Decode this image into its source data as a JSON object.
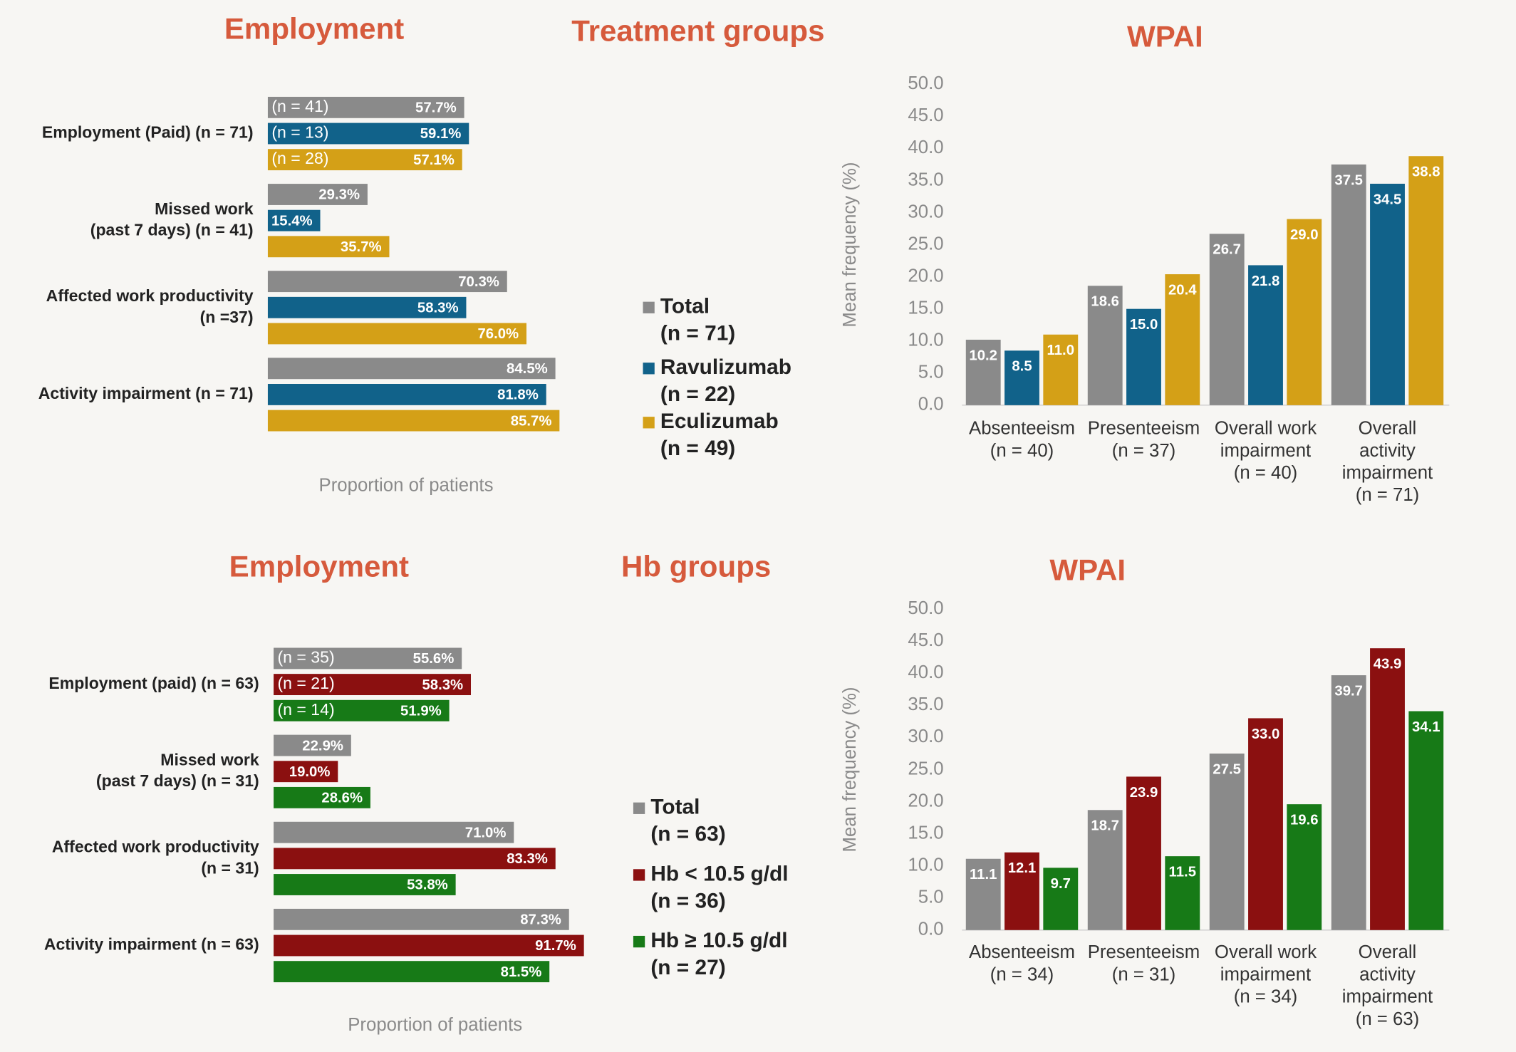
{
  "chart_data": [
    {
      "type": "hbar",
      "title": "Employment",
      "section_title": "Treatment groups",
      "xlabel": "Proportion of patients",
      "xlim": [
        0,
        100
      ],
      "categories": [
        [
          "Employment (Paid) (n = 71)"
        ],
        [
          "Missed work",
          "(past 7 days)  (n = 41)"
        ],
        [
          "Affected work productivity",
          "(n =37)"
        ],
        [
          "Activity impairment (n = 71)"
        ]
      ],
      "series": [
        {
          "name": "Total",
          "n_label": "(n = 71)",
          "color": "#8a8a8a",
          "inner_label": "(n = 41)",
          "values": [
            57.7,
            29.3,
            70.3,
            84.5
          ],
          "value_labels": [
            "57.7%",
            "29.3%",
            "70.3%",
            "84.5%"
          ]
        },
        {
          "name": "Ravulizumab",
          "n_label": "(n = 22)",
          "color": "#11628a",
          "inner_label": "(n = 13)",
          "values": [
            59.1,
            15.4,
            58.3,
            81.8
          ],
          "value_labels": [
            "59.1%",
            "15.4%",
            "58.3%",
            "81.8%"
          ]
        },
        {
          "name": "Eculizumab",
          "n_label": "(n = 49)",
          "color": "#d4a017",
          "inner_label": "(n = 28)",
          "values": [
            57.1,
            35.7,
            76.0,
            85.7
          ],
          "value_labels": [
            "57.1%",
            "35.7%",
            "76.0%",
            "85.7%"
          ]
        }
      ]
    },
    {
      "type": "bar",
      "title": "WPAI",
      "ylabel": "Mean frequency (%)",
      "ylim": [
        0,
        50
      ],
      "yticks": [
        {
          "value": 0,
          "label": "0.0"
        },
        {
          "value": 5,
          "label": "5.0"
        },
        {
          "value": 10,
          "label": "10.0"
        },
        {
          "value": 15,
          "label": "15.0"
        },
        {
          "value": 20,
          "label": "20.0"
        },
        {
          "value": 25,
          "label": "25.0"
        },
        {
          "value": 30,
          "label": "30.0"
        },
        {
          "value": 35,
          "label": "35.0"
        },
        {
          "value": 40,
          "label": "40.0"
        },
        {
          "value": 45,
          "label": "45.0"
        },
        {
          "value": 50,
          "label": "50.0"
        }
      ],
      "categories": [
        [
          "Absenteeism",
          "(n = 40)"
        ],
        [
          "Presenteeism",
          "(n = 37)"
        ],
        [
          "Overall work",
          "impairment",
          "(n = 40)"
        ],
        [
          "Overall",
          "activity",
          "impairment",
          "(n = 71)"
        ]
      ],
      "series": [
        {
          "color": "#8a8a8a",
          "values": [
            10.2,
            18.6,
            26.7,
            37.5
          ],
          "value_labels": [
            "10.2",
            "18.6",
            "26.7",
            "37.5"
          ]
        },
        {
          "color": "#11628a",
          "values": [
            8.5,
            15.0,
            21.8,
            34.5
          ],
          "value_labels": [
            "8.5",
            "15.0",
            "21.8",
            "34.5"
          ]
        },
        {
          "color": "#d4a017",
          "values": [
            11.0,
            20.4,
            29.0,
            38.8
          ],
          "value_labels": [
            "11.0",
            "20.4",
            "29.0",
            "38.8"
          ]
        }
      ]
    },
    {
      "type": "hbar",
      "title": "Employment",
      "section_title": "Hb groups",
      "xlabel": "Proportion of patients",
      "xlim": [
        0,
        100
      ],
      "categories": [
        [
          "Employment (paid) (n = 63)"
        ],
        [
          "Missed work",
          "(past 7 days)  (n = 31)"
        ],
        [
          "Affected work productivity",
          "(n = 31)"
        ],
        [
          "Activity impairment (n = 63)"
        ]
      ],
      "series": [
        {
          "name": "Total",
          "n_label": "(n = 63)",
          "color": "#8a8a8a",
          "inner_label": "(n = 35)",
          "values": [
            55.6,
            22.9,
            71.0,
            87.3
          ],
          "value_labels": [
            "55.6%",
            "22.9%",
            "71.0%",
            "87.3%"
          ]
        },
        {
          "name": "Hb < 10.5 g/dl",
          "n_label": "(n = 36)",
          "color": "#8b1010",
          "inner_label": "(n = 21)",
          "values": [
            58.3,
            19.0,
            83.3,
            91.7
          ],
          "value_labels": [
            "58.3%",
            "19.0%",
            "83.3%",
            "91.7%"
          ]
        },
        {
          "name": "Hb ≥ 10.5 g/dl",
          "n_label": "(n = 27)",
          "color": "#177a17",
          "inner_label": "(n = 14)",
          "values": [
            51.9,
            28.6,
            53.8,
            81.5
          ],
          "value_labels": [
            "51.9%",
            "28.6%",
            "53.8%",
            "81.5%"
          ]
        }
      ]
    },
    {
      "type": "bar",
      "title": "WPAI",
      "ylabel": "Mean frequency (%)",
      "ylim": [
        0,
        50
      ],
      "yticks": [
        {
          "value": 0,
          "label": "0.0"
        },
        {
          "value": 5,
          "label": "5.0"
        },
        {
          "value": 10,
          "label": "10.0"
        },
        {
          "value": 15,
          "label": "15.0"
        },
        {
          "value": 20,
          "label": "20.0"
        },
        {
          "value": 25,
          "label": "25.0"
        },
        {
          "value": 30,
          "label": "30.0"
        },
        {
          "value": 35,
          "label": "35.0"
        },
        {
          "value": 40,
          "label": "40.0"
        },
        {
          "value": 45,
          "label": "45.0"
        },
        {
          "value": 50,
          "label": "50.0"
        }
      ],
      "categories": [
        [
          "Absenteeism",
          "(n = 34)"
        ],
        [
          "Presenteeism",
          "(n = 31)"
        ],
        [
          "Overall work",
          "impairment",
          "(n = 34)"
        ],
        [
          "Overall",
          "activity",
          "impairment",
          "(n = 63)"
        ]
      ],
      "series": [
        {
          "color": "#8a8a8a",
          "values": [
            11.1,
            18.7,
            27.5,
            39.7
          ],
          "value_labels": [
            "11.1",
            "18.7",
            "27.5",
            "39.7"
          ]
        },
        {
          "color": "#8b1010",
          "values": [
            12.1,
            23.9,
            33.0,
            43.9
          ],
          "value_labels": [
            "12.1",
            "23.9",
            "33.0",
            "43.9"
          ]
        },
        {
          "color": "#177a17",
          "values": [
            9.7,
            11.5,
            19.6,
            34.1
          ],
          "value_labels": [
            "9.7",
            "11.5",
            "19.6",
            "34.1"
          ]
        }
      ]
    }
  ]
}
